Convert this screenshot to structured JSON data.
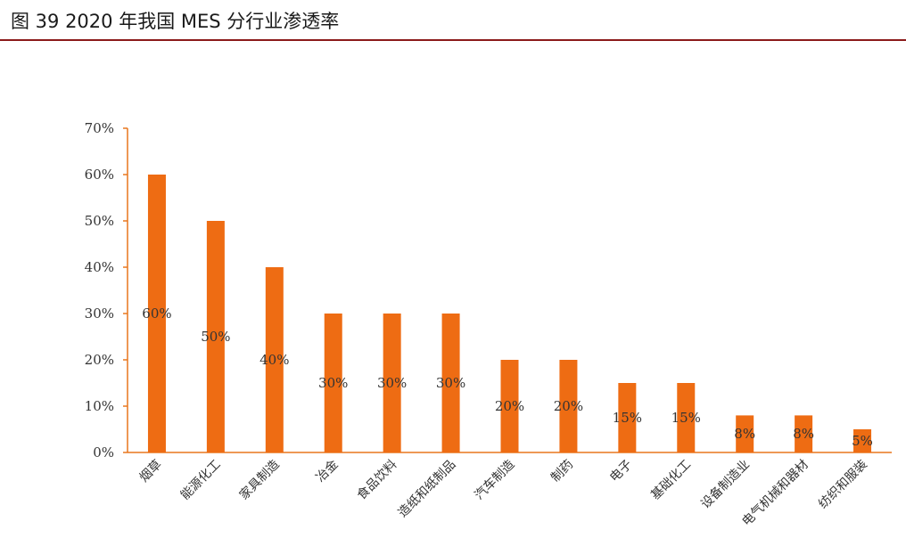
{
  "figure": {
    "title": "图  39 2020 年我国 MES 分行业渗透率"
  },
  "colors": {
    "bar": "#ee6c13",
    "axis": "#e8771d",
    "rule": "#8b1a1a"
  },
  "chart_data": {
    "type": "bar",
    "title": "",
    "xlabel": "",
    "ylabel": "",
    "ylim": [
      0,
      70
    ],
    "yticks": [
      "0%",
      "10%",
      "20%",
      "30%",
      "40%",
      "50%",
      "60%",
      "70%"
    ],
    "ytick_values": [
      0,
      10,
      20,
      30,
      40,
      50,
      60,
      70
    ],
    "grid": false,
    "legend": "none",
    "categories": [
      "烟草",
      "能源化工",
      "家具制造",
      "冶金",
      "食品饮料",
      "造纸和纸制品",
      "汽车制造",
      "制药",
      "电子",
      "基础化工",
      "设备制造业",
      "电气机械和器材",
      "纺织和服装"
    ],
    "values": [
      60,
      50,
      40,
      30,
      30,
      30,
      20,
      20,
      15,
      15,
      8,
      8,
      5
    ],
    "data_labels": [
      "60%",
      "50%",
      "40%",
      "30%",
      "30%",
      "30%",
      "20%",
      "20%",
      "15%",
      "15%",
      "8%",
      "8%",
      "5%"
    ]
  }
}
